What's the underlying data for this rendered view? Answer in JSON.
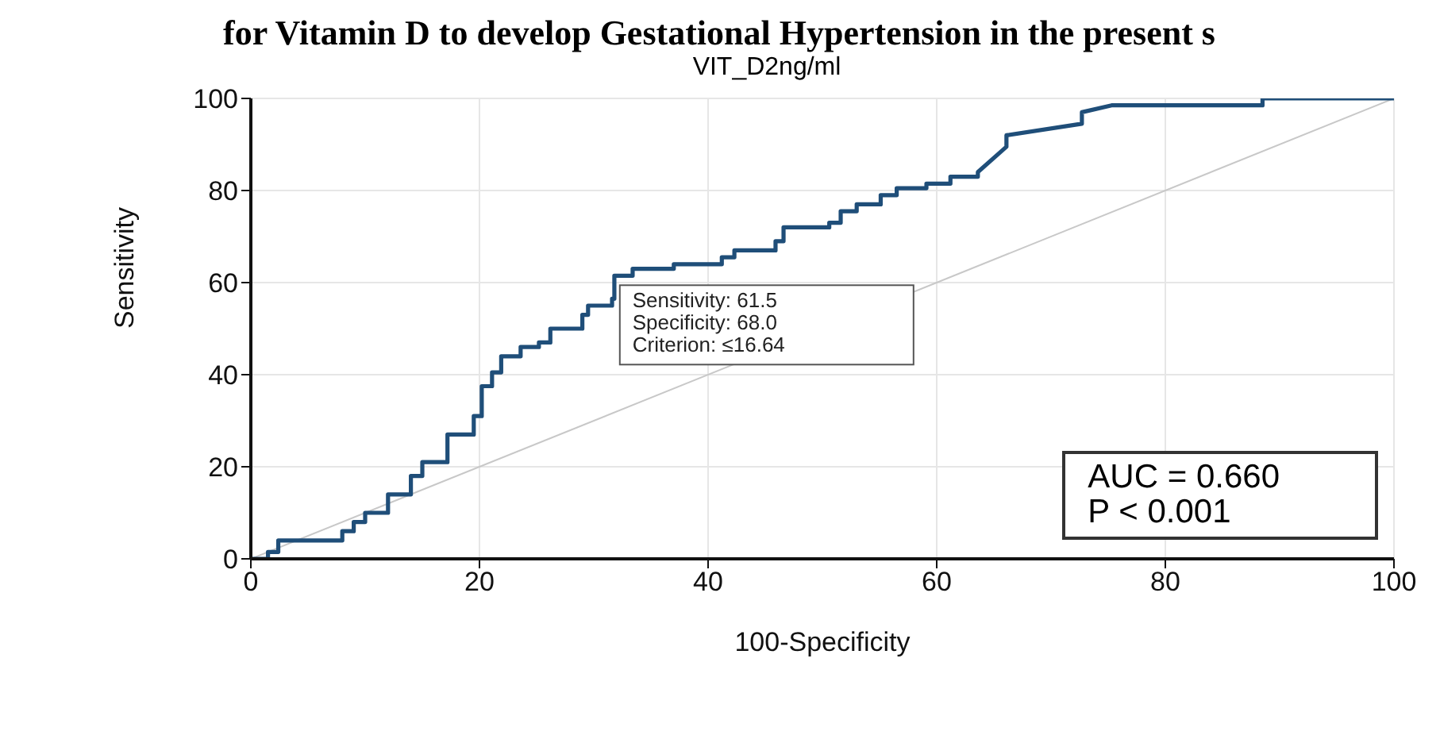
{
  "chart_data": {
    "type": "line",
    "title": "for Vitamin D to develop Gestational Hypertension in the present s",
    "subtitle": "VIT_D2ng/ml",
    "xlabel": "100-Specificity",
    "ylabel": "Sensitivity",
    "series": [
      {
        "color": "#1f4e79",
        "x": [
          0,
          1.5,
          1.5,
          2.4,
          2.4,
          8,
          8,
          9,
          9,
          10,
          10,
          12,
          12,
          14,
          14,
          15,
          15,
          17.2,
          17.2,
          19.5,
          19.5,
          20.2,
          20.2,
          21.1,
          21.1,
          21.9,
          21.9,
          23.6,
          23.6,
          25.2,
          25.2,
          26.2,
          26.2,
          29,
          29,
          29.5,
          29.5,
          31.6,
          31.6,
          31.8,
          31.8,
          33.4,
          33.4,
          37,
          37,
          41.2,
          41.2,
          42.3,
          42.3,
          45.9,
          45.9,
          46.6,
          46.6,
          50.6,
          50.6,
          51.6,
          51.6,
          53,
          53,
          55.1,
          55.1,
          56.5,
          56.5,
          59.1,
          59.1,
          61.2,
          61.2,
          63.6,
          63.6,
          66.1,
          66.1,
          72.7,
          72.7,
          75.3,
          75.3,
          88.5,
          88.5,
          100
        ],
        "values": [
          0,
          0,
          1.5,
          1.5,
          4,
          4,
          6,
          6,
          8,
          8,
          10,
          10,
          14,
          14,
          18,
          18,
          21,
          21,
          27,
          27,
          31,
          31,
          37.5,
          37.5,
          40.5,
          40.5,
          44,
          44,
          46,
          46,
          47,
          47,
          50,
          50,
          53,
          53,
          55,
          55,
          56.5,
          56.5,
          61.5,
          61.5,
          63,
          63,
          64,
          64,
          65.5,
          65.5,
          67,
          67,
          69,
          69,
          72,
          72,
          73,
          73,
          75.5,
          75.5,
          77,
          77,
          79,
          79,
          80.5,
          80.5,
          81.5,
          81.5,
          83,
          83,
          84,
          89.5,
          92,
          94.5,
          97,
          98.5,
          98.5,
          98.5,
          100,
          100
        ]
      },
      {
        "color": "#c8c8c8",
        "x": [
          0,
          100
        ],
        "values": [
          0,
          100
        ]
      }
    ],
    "xlim": [
      0,
      100
    ],
    "xticks": [
      0,
      20,
      40,
      60,
      80,
      100
    ],
    "ylim": [
      0,
      100
    ],
    "yticks": [
      0,
      20,
      40,
      60,
      80,
      100
    ],
    "grid": true,
    "legend": false,
    "marker": "none",
    "annotations": [
      {
        "text": "Sensitivity: 61.5\nSpecificity: 68.0\nCriterion: ≤16.64",
        "x": 32,
        "y": 61.5
      },
      "AUC = 0.660\nP < 0.001"
    ]
  }
}
